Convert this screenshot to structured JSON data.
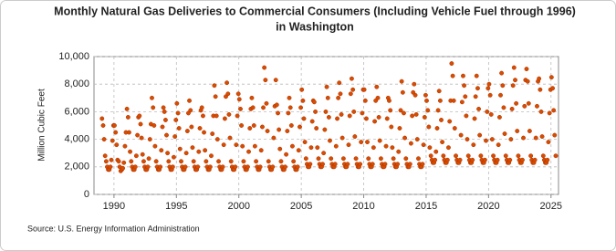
{
  "chart_data": {
    "type": "scatter",
    "title": [
      "Monthly Natural Gas Deliveries to Commercial Consumers (Including Vehicle Fuel through 1996)",
      "in Washington"
    ],
    "y_label": "Million Cubic Feet",
    "source": "Source: U.S. Energy Information Administration",
    "color": "#d94c00",
    "grid": true,
    "xlim": [
      1988.4,
      2025.6
    ],
    "xticks": [
      1990,
      1995,
      2000,
      2005,
      2010,
      2015,
      2020,
      2025
    ],
    "ylim": [
      0,
      10000
    ],
    "yticks": [
      0,
      {
        "value": 2000,
        "label": "2,000"
      },
      {
        "value": 4000,
        "label": "4,000"
      },
      {
        "value": 6000,
        "label": "6,000"
      },
      {
        "value": 8000,
        "label": "8,000"
      },
      {
        "value": 10000,
        "label": "10,000"
      }
    ],
    "x": [
      1989.04,
      1989.13,
      1989.21,
      1989.29,
      1989.38,
      1989.46,
      1989.54,
      1989.63,
      1989.71,
      1989.79,
      1989.88,
      1989.96,
      1990.04,
      1990.13,
      1990.21,
      1990.29,
      1990.38,
      1990.46,
      1990.54,
      1990.63,
      1990.71,
      1990.79,
      1990.88,
      1990.96,
      1991.04,
      1991.13,
      1991.21,
      1991.29,
      1991.38,
      1991.46,
      1991.54,
      1991.63,
      1991.71,
      1991.79,
      1991.88,
      1991.96,
      1992.04,
      1992.13,
      1992.21,
      1992.29,
      1992.38,
      1992.46,
      1992.54,
      1992.63,
      1992.71,
      1992.79,
      1992.88,
      1992.96,
      1993.04,
      1993.13,
      1993.21,
      1993.29,
      1993.38,
      1993.46,
      1993.54,
      1993.63,
      1993.71,
      1993.79,
      1993.88,
      1993.96,
      1994.04,
      1994.13,
      1994.21,
      1994.29,
      1994.38,
      1994.46,
      1994.54,
      1994.63,
      1994.71,
      1994.79,
      1994.88,
      1994.96,
      1995.04,
      1995.13,
      1995.21,
      1995.29,
      1995.38,
      1995.46,
      1995.54,
      1995.63,
      1995.71,
      1995.79,
      1995.88,
      1995.96,
      1996.04,
      1996.13,
      1996.21,
      1996.29,
      1996.38,
      1996.46,
      1996.54,
      1996.63,
      1996.71,
      1996.79,
      1996.88,
      1996.96,
      1997.04,
      1997.13,
      1997.21,
      1997.29,
      1997.38,
      1997.46,
      1997.54,
      1997.63,
      1997.71,
      1997.79,
      1997.88,
      1997.96,
      1998.04,
      1998.13,
      1998.21,
      1998.29,
      1998.38,
      1998.46,
      1998.54,
      1998.63,
      1998.71,
      1998.79,
      1998.88,
      1998.96,
      1999.04,
      1999.13,
      1999.21,
      1999.29,
      1999.38,
      1999.46,
      1999.54,
      1999.63,
      1999.71,
      1999.79,
      1999.88,
      1999.96,
      2000.04,
      2000.13,
      2000.21,
      2000.29,
      2000.38,
      2000.46,
      2000.54,
      2000.63,
      2000.71,
      2000.79,
      2000.88,
      2000.96,
      2001.04,
      2001.13,
      2001.21,
      2001.29,
      2001.38,
      2001.46,
      2001.54,
      2001.63,
      2001.71,
      2001.79,
      2001.88,
      2001.96,
      2002.04,
      2002.13,
      2002.21,
      2002.29,
      2002.38,
      2002.46,
      2002.54,
      2002.63,
      2002.71,
      2002.79,
      2002.88,
      2002.96,
      2003.04,
      2003.13,
      2003.21,
      2003.29,
      2003.38,
      2003.46,
      2003.54,
      2003.63,
      2003.71,
      2003.79,
      2003.88,
      2003.96,
      2004.04,
      2004.13,
      2004.21,
      2004.29,
      2004.38,
      2004.46,
      2004.54,
      2004.63,
      2004.71,
      2004.79,
      2004.88,
      2004.96,
      2005.04,
      2005.13,
      2005.21,
      2005.29,
      2005.38,
      2005.46,
      2005.54,
      2005.63,
      2005.71,
      2005.79,
      2005.88,
      2005.96,
      2006.04,
      2006.13,
      2006.21,
      2006.29,
      2006.38,
      2006.46,
      2006.54,
      2006.63,
      2006.71,
      2006.79,
      2006.88,
      2006.96,
      2007.04,
      2007.13,
      2007.21,
      2007.29,
      2007.38,
      2007.46,
      2007.54,
      2007.63,
      2007.71,
      2007.79,
      2007.88,
      2007.96,
      2008.04,
      2008.13,
      2008.21,
      2008.29,
      2008.38,
      2008.46,
      2008.54,
      2008.63,
      2008.71,
      2008.79,
      2008.88,
      2008.96,
      2009.04,
      2009.13,
      2009.21,
      2009.29,
      2009.38,
      2009.46,
      2009.54,
      2009.63,
      2009.71,
      2009.79,
      2009.88,
      2009.96,
      2010.04,
      2010.13,
      2010.21,
      2010.29,
      2010.38,
      2010.46,
      2010.54,
      2010.63,
      2010.71,
      2010.79,
      2010.88,
      2010.96,
      2011.04,
      2011.13,
      2011.21,
      2011.29,
      2011.38,
      2011.46,
      2011.54,
      2011.63,
      2011.71,
      2011.79,
      2011.88,
      2011.96,
      2012.04,
      2012.13,
      2012.21,
      2012.29,
      2012.38,
      2012.46,
      2012.54,
      2012.63,
      2012.71,
      2012.79,
      2012.88,
      2012.96,
      2013.04,
      2013.13,
      2013.21,
      2013.29,
      2013.38,
      2013.46,
      2013.54,
      2013.63,
      2013.71,
      2013.79,
      2013.88,
      2013.96,
      2014.04,
      2014.13,
      2014.21,
      2014.29,
      2014.38,
      2014.46,
      2014.54,
      2014.63,
      2014.71,
      2014.79,
      2014.88,
      2014.96,
      2015.04,
      2015.13,
      2015.21,
      2015.29,
      2015.38,
      2015.46,
      2015.54,
      2015.63,
      2015.71,
      2015.79,
      2015.88,
      2015.96,
      2016.04,
      2016.13,
      2016.21,
      2016.29,
      2016.38,
      2016.46,
      2016.54,
      2016.63,
      2016.71,
      2016.79,
      2016.88,
      2016.96,
      2017.04,
      2017.13,
      2017.21,
      2017.29,
      2017.38,
      2017.46,
      2017.54,
      2017.63,
      2017.71,
      2017.79,
      2017.88,
      2017.96,
      2018.04,
      2018.13,
      2018.21,
      2018.29,
      2018.38,
      2018.46,
      2018.54,
      2018.63,
      2018.71,
      2018.79,
      2018.88,
      2018.96,
      2019.04,
      2019.13,
      2019.21,
      2019.29,
      2019.38,
      2019.46,
      2019.54,
      2019.63,
      2019.71,
      2019.79,
      2019.88,
      2019.96,
      2020.04,
      2020.13,
      2020.21,
      2020.29,
      2020.38,
      2020.46,
      2020.54,
      2020.63,
      2020.71,
      2020.79,
      2020.88,
      2020.96,
      2021.04,
      2021.13,
      2021.21,
      2021.29,
      2021.38,
      2021.46,
      2021.54,
      2021.63,
      2021.71,
      2021.79,
      2021.88,
      2021.96,
      2022.04,
      2022.13,
      2022.21,
      2022.29,
      2022.38,
      2022.46,
      2022.54,
      2022.63,
      2022.71,
      2022.79,
      2022.88,
      2022.96,
      2023.04,
      2023.13,
      2023.21,
      2023.29,
      2023.38,
      2023.46,
      2023.54,
      2023.63,
      2023.71,
      2023.79,
      2023.88,
      2023.96,
      2024.04,
      2024.13,
      2024.21,
      2024.29,
      2024.38,
      2024.46,
      2024.54,
      2024.63,
      2024.71,
      2024.79,
      2024.88,
      2024.96,
      2025.04,
      2025.13,
      2025.21,
      2025.29,
      2025.38
    ],
    "values": [
      5500,
      5000,
      4000,
      2800,
      2400,
      2000,
      1800,
      1800,
      2000,
      2500,
      3900,
      5000,
      5000,
      4500,
      3600,
      2500,
      2400,
      2000,
      1700,
      1800,
      1900,
      2300,
      3500,
      4500,
      6200,
      5600,
      4500,
      3100,
      2400,
      2000,
      1800,
      1800,
      2000,
      2800,
      4300,
      5600,
      5700,
      5100,
      4100,
      2900,
      2400,
      2000,
      1800,
      1800,
      2000,
      2600,
      4000,
      5100,
      7000,
      6300,
      5000,
      3500,
      2400,
      2000,
      1800,
      1800,
      2000,
      3200,
      4900,
      6300,
      6000,
      5400,
      4300,
      3000,
      2400,
      2000,
      1800,
      1800,
      2000,
      2700,
      4200,
      5400,
      6600,
      5900,
      4800,
      3300,
      2400,
      2000,
      1800,
      1800,
      2000,
      3000,
      4600,
      5900,
      6800,
      6100,
      4900,
      3400,
      2400,
      2000,
      1800,
      1800,
      2000,
      3100,
      4800,
      6100,
      6300,
      5700,
      4500,
      3200,
      2400,
      2000,
      1800,
      1800,
      2000,
      2800,
      4400,
      5700,
      7900,
      7100,
      5700,
      4000,
      2400,
      2000,
      1800,
      1800,
      2000,
      3600,
      5500,
      7100,
      8100,
      7300,
      5800,
      4100,
      2400,
      2000,
      1800,
      1800,
      2000,
      3600,
      5700,
      7300,
      6900,
      6200,
      5000,
      3500,
      2400,
      2000,
      1800,
      1800,
      2000,
      3100,
      4800,
      6200,
      7000,
      6300,
      5000,
      3500,
      2400,
      2000,
      1800,
      1800,
      2000,
      3200,
      4900,
      6300,
      9200,
      8300,
      6600,
      4600,
      2400,
      2000,
      1800,
      1800,
      2000,
      4100,
      6400,
      8300,
      6500,
      5900,
      4700,
      3300,
      2400,
      2000,
      1800,
      1800,
      2000,
      2900,
      4600,
      5900,
      7000,
      6300,
      5000,
      3500,
      2400,
      2000,
      1800,
      1800,
      2000,
      3200,
      4900,
      6300,
      7600,
      6800,
      5500,
      3800,
      2600,
      2200,
      2000,
      2000,
      2200,
      3400,
      5300,
      6800,
      6700,
      6000,
      4800,
      3400,
      2600,
      2200,
      2000,
      2000,
      2200,
      3000,
      4700,
      6000,
      7800,
      7000,
      5600,
      3900,
      2600,
      2200,
      2000,
      2000,
      2200,
      3500,
      5500,
      7000,
      8100,
      7300,
      5800,
      4100,
      2600,
      2200,
      2000,
      2000,
      2200,
      3600,
      5700,
      7300,
      8400,
      7600,
      6000,
      4200,
      2600,
      2200,
      2000,
      2000,
      2200,
      3800,
      5900,
      7600,
      7600,
      6800,
      5500,
      3800,
      2600,
      2200,
      2000,
      2000,
      2200,
      3400,
      5300,
      6800,
      7800,
      7000,
      5600,
      3900,
      2600,
      2200,
      2000,
      2000,
      2200,
      3500,
      5500,
      7000,
      6800,
      6100,
      4900,
      3400,
      2600,
      2200,
      2000,
      2000,
      2200,
      3100,
      4800,
      6100,
      8200,
      7400,
      5900,
      4100,
      2600,
      2200,
      2000,
      2000,
      2200,
      3700,
      5700,
      7400,
      8000,
      7200,
      5800,
      4000,
      2600,
      2200,
      2000,
      2000,
      2200,
      3600,
      5600,
      7200,
      6800,
      6100,
      4900,
      3400,
      2800,
      2500,
      2300,
      2300,
      2500,
      3100,
      4800,
      6100,
      7500,
      6800,
      5400,
      3800,
      2800,
      2500,
      2300,
      2300,
      2500,
      3400,
      5300,
      6800,
      9500,
      8600,
      6800,
      4800,
      2800,
      2500,
      2300,
      2300,
      2500,
      4300,
      6700,
      8600,
      7900,
      7100,
      5700,
      4000,
      2800,
      2500,
      2300,
      2300,
      2500,
      3600,
      5500,
      7100,
      8600,
      7700,
      6200,
      4300,
      2800,
      2500,
      2300,
      2300,
      2500,
      3900,
      6000,
      7700,
      8000,
      7200,
      5800,
      4000,
      2800,
      2500,
      2300,
      2300,
      2500,
      3600,
      5600,
      7200,
      8800,
      7900,
      6300,
      4400,
      2800,
      2500,
      2300,
      2300,
      2500,
      4000,
      6200,
      7900,
      9200,
      8300,
      6600,
      4600,
      2800,
      2500,
      2300,
      2300,
      2500,
      4100,
      6400,
      8300,
      9100,
      8200,
      6600,
      4600,
      2800,
      2500,
      2300,
      2300,
      2500,
      4100,
      6400,
      8200,
      8400,
      7600,
      6000,
      4200,
      2800,
      2500,
      2300,
      2300,
      2500,
      3800,
      5900,
      7600,
      8500,
      7700,
      6100,
      4300,
      2800
    ]
  }
}
